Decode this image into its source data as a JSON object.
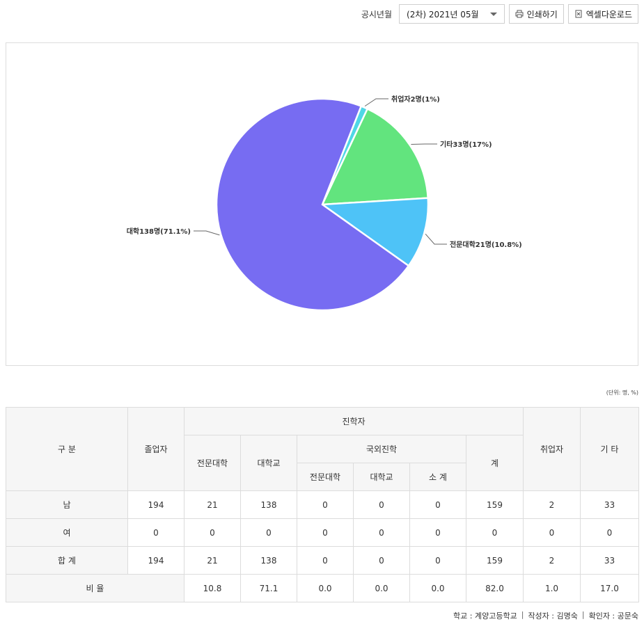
{
  "toolbar": {
    "period_label": "공시년월",
    "period_value": "(2차) 2021년 05월",
    "print_label": "인쇄하기",
    "excel_label": "엑셀다운로드"
  },
  "chart_data": {
    "type": "pie",
    "slices": [
      {
        "label": "취업자2명(1%)",
        "value": 2,
        "color": "#4fd7e6"
      },
      {
        "label": "기타33명(17%)",
        "value": 33,
        "color": "#62e47e"
      },
      {
        "label": "전문대학21명(10.8%)",
        "value": 21,
        "color": "#4ec3f7"
      },
      {
        "label": "대학138명(71.1%)",
        "value": 138,
        "color": "#776cf2"
      }
    ],
    "legend": "none"
  },
  "unit_label": "(단위: 명, %)",
  "table": {
    "headers": {
      "category": "구 분",
      "graduates": "졸업자",
      "advance": "진학자",
      "junior_college": "전문대학",
      "university": "대학교",
      "overseas": "국외진학",
      "ov_junior": "전문대학",
      "ov_university": "대학교",
      "ov_subtotal": "소 계",
      "total": "계",
      "employed": "취업자",
      "other": "기 타"
    },
    "rows": [
      {
        "label": "남",
        "cells": [
          "194",
          "21",
          "138",
          "0",
          "0",
          "0",
          "159",
          "2",
          "33"
        ]
      },
      {
        "label": "여",
        "cells": [
          "0",
          "0",
          "0",
          "0",
          "0",
          "0",
          "0",
          "0",
          "0"
        ]
      },
      {
        "label": "합 계",
        "cells": [
          "194",
          "21",
          "138",
          "0",
          "0",
          "0",
          "159",
          "2",
          "33"
        ]
      }
    ],
    "ratio": {
      "label": "비 율",
      "cells": [
        "10.8",
        "71.1",
        "0.0",
        "0.0",
        "0.0",
        "82.0",
        "1.0",
        "17.0"
      ]
    }
  },
  "footer": {
    "school": "학교 : 계양고등학교",
    "writer": "작성자 : 김명숙",
    "checker": "확인자 : 공문숙"
  }
}
